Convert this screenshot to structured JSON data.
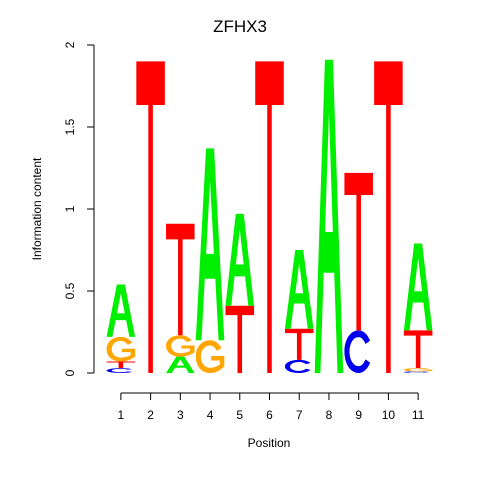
{
  "chart_data": {
    "type": "sequence-logo",
    "title": "ZFHX3",
    "xlabel": "Position",
    "ylabel": "Information content",
    "ylim": [
      0,
      2
    ],
    "yticks": [
      0,
      0.5,
      1,
      1.5,
      2
    ],
    "ytick_labels": [
      "0",
      "0.5",
      "1",
      "1.5",
      "2"
    ],
    "positions": [
      "1",
      "2",
      "3",
      "4",
      "5",
      "6",
      "7",
      "8",
      "9",
      "10",
      "11"
    ],
    "colors": {
      "A": "#00ee00",
      "C": "#0000ee",
      "G": "#ffa500",
      "T": "#ff0000"
    },
    "stacks": [
      {
        "position": "1",
        "letters": [
          {
            "letter": "C",
            "height": 0.03
          },
          {
            "letter": "T",
            "height": 0.04
          },
          {
            "letter": "G",
            "height": 0.15
          },
          {
            "letter": "A",
            "height": 0.32
          }
        ]
      },
      {
        "position": "2",
        "letters": [
          {
            "letter": "T",
            "height": 1.9
          }
        ]
      },
      {
        "position": "3",
        "letters": [
          {
            "letter": "A",
            "height": 0.1
          },
          {
            "letter": "G",
            "height": 0.13
          },
          {
            "letter": "T",
            "height": 0.68
          }
        ]
      },
      {
        "position": "4",
        "letters": [
          {
            "letter": "G",
            "height": 0.2
          },
          {
            "letter": "A",
            "height": 1.17
          }
        ]
      },
      {
        "position": "5",
        "letters": [
          {
            "letter": "T",
            "height": 0.41
          },
          {
            "letter": "A",
            "height": 0.56
          }
        ]
      },
      {
        "position": "6",
        "letters": [
          {
            "letter": "T",
            "height": 1.9
          }
        ]
      },
      {
        "position": "7",
        "letters": [
          {
            "letter": "C",
            "height": 0.08
          },
          {
            "letter": "T",
            "height": 0.19
          },
          {
            "letter": "A",
            "height": 0.48
          }
        ]
      },
      {
        "position": "8",
        "letters": [
          {
            "letter": "A",
            "height": 1.91
          }
        ]
      },
      {
        "position": "9",
        "letters": [
          {
            "letter": "C",
            "height": 0.26
          },
          {
            "letter": "T",
            "height": 0.96
          }
        ]
      },
      {
        "position": "10",
        "letters": [
          {
            "letter": "T",
            "height": 1.9
          }
        ]
      },
      {
        "position": "11",
        "letters": [
          {
            "letter": "C",
            "height": 0.01
          },
          {
            "letter": "G",
            "height": 0.02
          },
          {
            "letter": "T",
            "height": 0.23
          },
          {
            "letter": "A",
            "height": 0.53
          }
        ]
      }
    ]
  }
}
